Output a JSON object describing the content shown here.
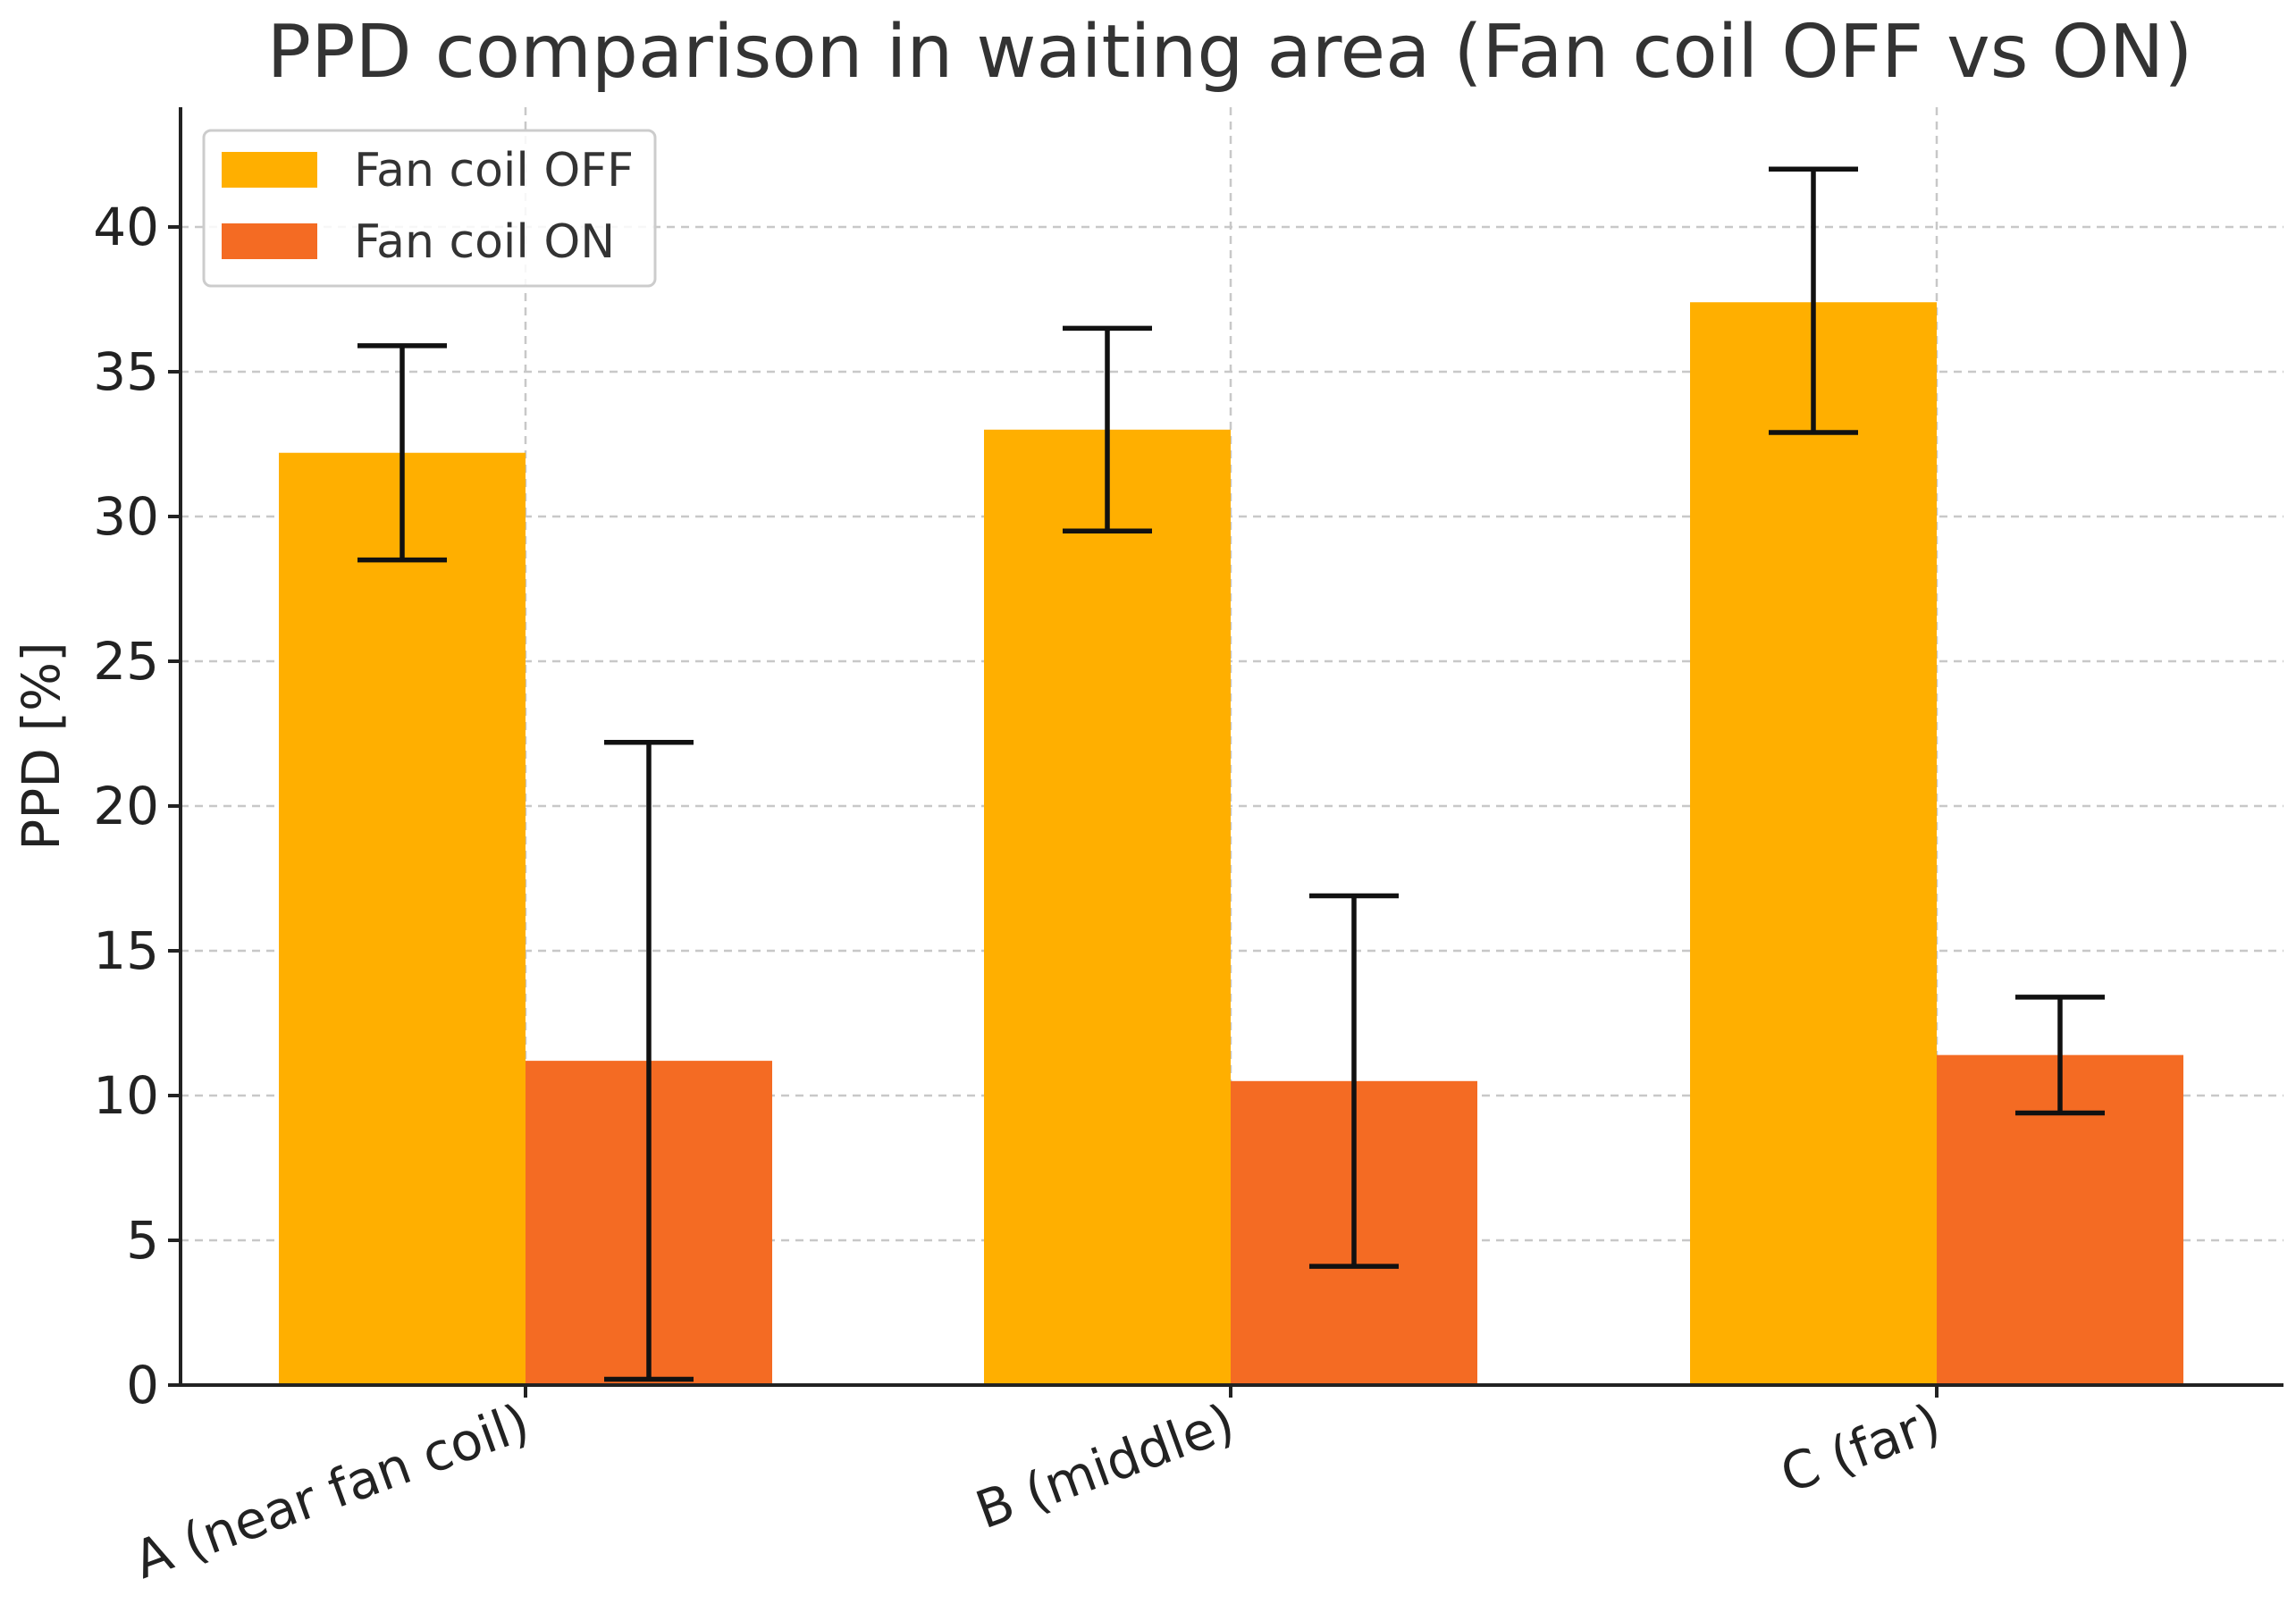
{
  "chart_data": {
    "type": "bar",
    "title": "PPD comparison in waiting area (Fan coil OFF vs ON)",
    "xlabel": "",
    "ylabel": "PPD [%]",
    "ylim": [
      0,
      44
    ],
    "yticks": [
      0,
      5,
      10,
      15,
      20,
      25,
      30,
      35,
      40
    ],
    "grid": true,
    "legend_position": "top-left",
    "categories": [
      "A (near fan coil)",
      "B (middle)",
      "C (far)"
    ],
    "series": [
      {
        "name": "Fan coil OFF",
        "color": "#FFAF00",
        "values": [
          32.2,
          33.0,
          37.4
        ],
        "error_low": [
          28.5,
          29.5,
          32.9
        ],
        "error_high": [
          35.9,
          36.5,
          42.0
        ]
      },
      {
        "name": "Fan coil ON",
        "color": "#F46B23",
        "values": [
          11.2,
          10.5,
          11.4
        ],
        "error_low": [
          0.2,
          4.1,
          9.4
        ],
        "error_high": [
          22.2,
          16.9,
          13.4
        ]
      }
    ]
  }
}
